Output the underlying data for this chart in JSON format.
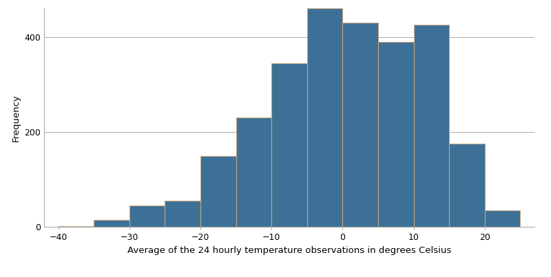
{
  "bin_edges": [
    -40,
    -35,
    -30,
    -25,
    -20,
    -15,
    -10,
    -5,
    0,
    5,
    10,
    15,
    20,
    25
  ],
  "frequencies": [
    2,
    15,
    45,
    55,
    150,
    230,
    345,
    460,
    430,
    390,
    425,
    175,
    35
  ],
  "bar_color": "#3d7096",
  "bar_edgecolor": "#c8a882",
  "xlabel": "Average of the 24 hourly temperature observations in degrees Celsius",
  "ylabel": "Frequency",
  "xlim": [
    -42,
    27
  ],
  "ylim": [
    0,
    460
  ],
  "yticks": [
    0,
    200,
    400
  ],
  "xticks": [
    -40,
    -30,
    -20,
    -10,
    0,
    10,
    20
  ],
  "background_color": "#ffffff",
  "grid_color": "#aaaaaa",
  "figsize": [
    8.0,
    4.03
  ],
  "dpi": 100
}
